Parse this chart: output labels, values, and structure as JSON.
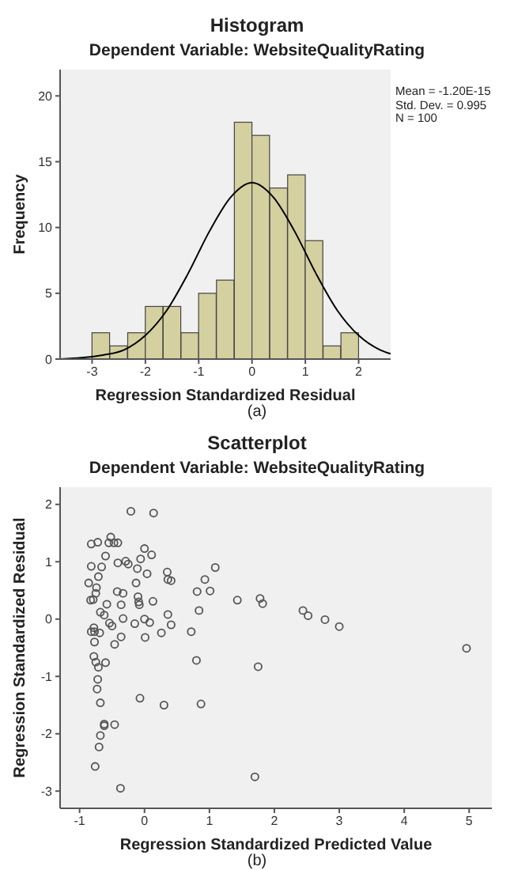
{
  "chart_data": [
    {
      "type": "histogram",
      "title": "Histogram",
      "subtitle": "Dependent Variable: WebsiteQualityRating",
      "xlabel": "Regression Standardized Residual",
      "ylabel": "Frequency",
      "bins": [
        -3,
        -2.67,
        -2.33,
        -2,
        -1.67,
        -1.33,
        -1,
        -0.67,
        -0.33,
        0,
        0.33,
        0.67,
        1,
        1.33,
        1.67,
        2
      ],
      "values": [
        2,
        1,
        2,
        4,
        4,
        2,
        5,
        6,
        18,
        17,
        13,
        14,
        9,
        1,
        2
      ],
      "color": "#d5d0a0",
      "xlim": [
        -3.6,
        2.6
      ],
      "xticks": [
        -3,
        -2,
        -1,
        0,
        1,
        2
      ],
      "ylim": [
        0,
        22
      ],
      "yticks": [
        0,
        5,
        10,
        15,
        20
      ],
      "annotations": [
        "Mean = -1.20E-15",
        "Std. Dev. = 0.995",
        "N = 100",
        "(a)"
      ],
      "series": [
        {
          "type": "line",
          "color": "#000000",
          "x": [
            -3.6,
            -3.2,
            -2.8,
            -2.4,
            -2,
            -1.6,
            -1.2,
            -0.8,
            -0.4,
            0,
            0.4,
            0.8,
            1.2,
            1.6,
            2,
            2.4,
            2.6
          ],
          "values": [
            0,
            0.1,
            0.3,
            0.7,
            1.8,
            3.7,
            6.5,
            9.7,
            12.3,
            13.4,
            12.3,
            9.7,
            6.5,
            3.7,
            1.8,
            0.7,
            0.4
          ]
        }
      ]
    },
    {
      "type": "scatter",
      "title": "Scatterplot",
      "subtitle": "Dependent Variable: WebsiteQualityRating",
      "xlabel": "Regression Standardized Predicted Value",
      "ylabel": "Regression Standardized Residual",
      "color": "#555555",
      "marker": "circle",
      "xlim": [
        -1.3,
        5.35
      ],
      "xticks": [
        -1,
        0,
        1,
        2,
        3,
        4,
        5
      ],
      "ylim": [
        -3.3,
        2.3
      ],
      "yticks": [
        -3,
        -2,
        -1,
        0,
        1,
        2
      ],
      "annotations": [
        "(b)"
      ],
      "x": [
        -0.21,
        0.14,
        -0.82,
        -0.72,
        -0.52,
        -0.55,
        -0.47,
        -0.41,
        -0.6,
        0,
        0.11,
        -0.82,
        -0.66,
        -0.41,
        -0.29,
        -0.25,
        -0.06,
        -0.11,
        0.04,
        0.35,
        0.36,
        0.41,
        1.09,
        0.93,
        -0.71,
        -0.86,
        -0.74,
        -0.13,
        -0.42,
        -0.33,
        -0.75,
        -0.79,
        -0.83,
        -0.1,
        -0.09,
        -0.08,
        0.13,
        -0.58,
        -0.36,
        0.81,
        1.01,
        1.43,
        1.78,
        1.82,
        2.44,
        2.52,
        2.78,
        3,
        4.96,
        -0.68,
        -0.62,
        -0.33,
        0,
        0.08,
        -0.15,
        0.36,
        0.41,
        0.84,
        -0.54,
        -0.5,
        -0.82,
        -0.78,
        -0.77,
        -0.69,
        -0.77,
        -0.36,
        -0.46,
        0.01,
        0.26,
        0.72,
        0.8,
        1.75,
        -0.78,
        -0.75,
        -0.71,
        -0.6,
        -0.72,
        -0.73,
        -0.68,
        -0.07,
        0.3,
        0.87,
        -0.62,
        -0.62,
        -0.46,
        -0.68,
        -0.7,
        -0.76,
        -0.37,
        1.7
      ],
      "values": [
        1.88,
        1.85,
        1.31,
        1.34,
        1.43,
        1.33,
        1.33,
        1.33,
        1.1,
        1.23,
        1.12,
        0.92,
        0.91,
        0.98,
        1.01,
        0.96,
        1.05,
        0.88,
        0.79,
        0.82,
        0.69,
        0.67,
        0.9,
        0.69,
        0.74,
        0.63,
        0.55,
        0.63,
        0.48,
        0.45,
        0.45,
        0.34,
        0.33,
        0.39,
        0.3,
        0.25,
        0.31,
        0.26,
        0.25,
        0.48,
        0.49,
        0.33,
        0.36,
        0.27,
        0.15,
        0.06,
        -0.01,
        -0.13,
        -0.51,
        0.12,
        0.07,
        0.01,
        0,
        -0.06,
        -0.08,
        0.08,
        -0.1,
        0.15,
        -0.07,
        -0.12,
        -0.22,
        -0.15,
        -0.22,
        -0.24,
        -0.4,
        -0.31,
        -0.44,
        -0.32,
        -0.24,
        -0.22,
        -0.72,
        -0.83,
        -0.65,
        -0.75,
        -0.84,
        -0.76,
        -1.05,
        -1.22,
        -1.46,
        -1.38,
        -1.5,
        -1.48,
        -1.83,
        -1.86,
        -1.84,
        -2.03,
        -2.23,
        -2.57,
        -2.95,
        -2.75
      ]
    }
  ]
}
